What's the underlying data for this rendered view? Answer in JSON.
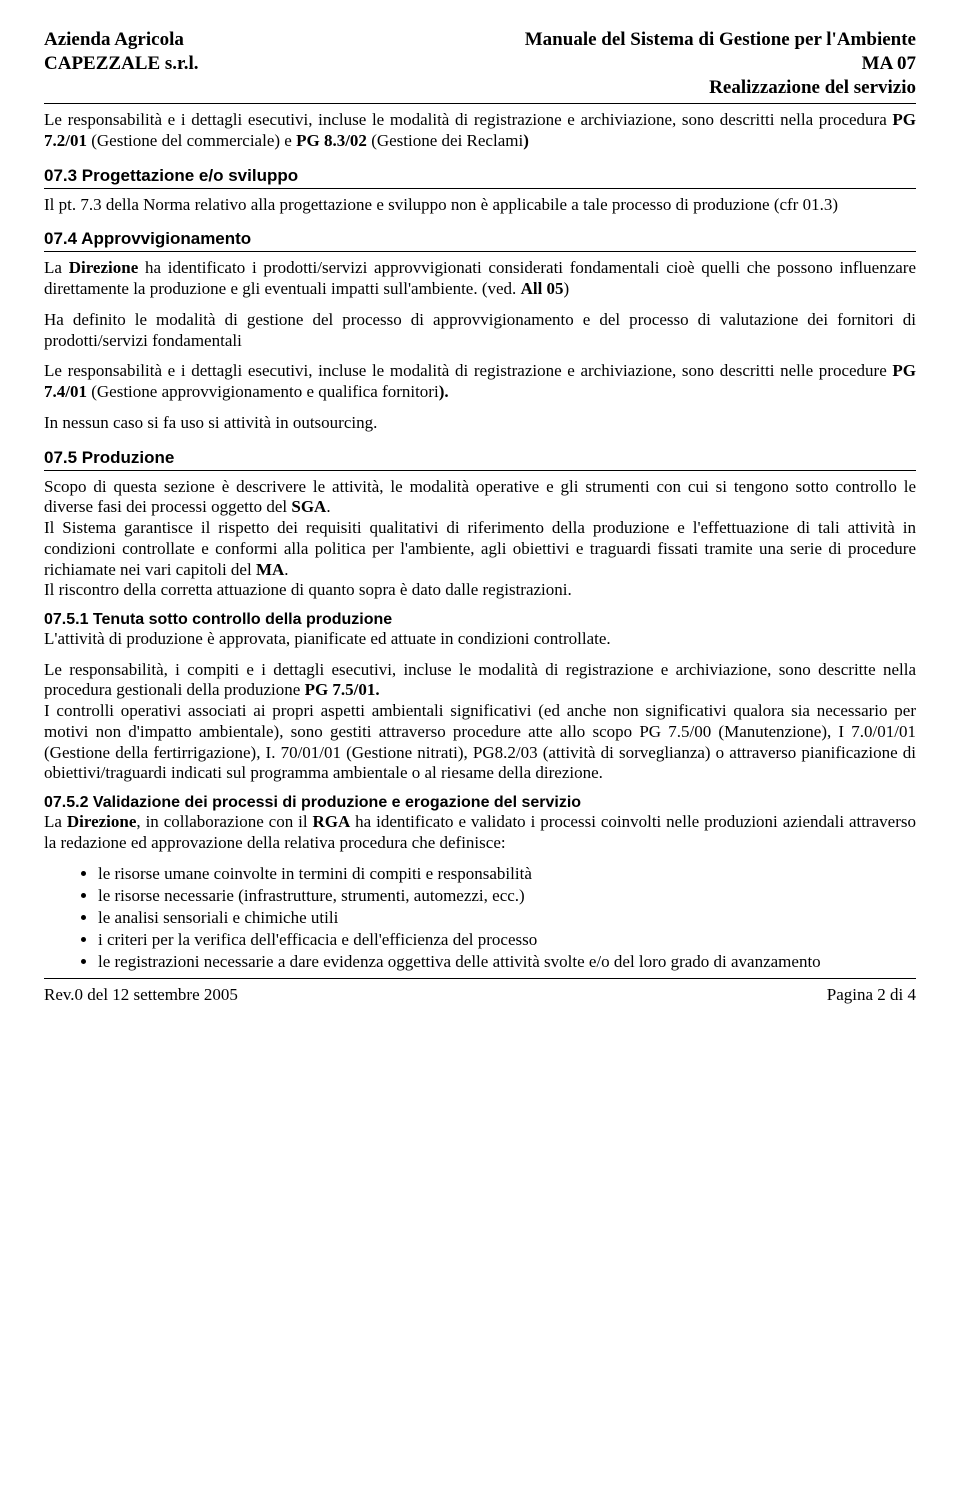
{
  "header": {
    "left_line1": "Azienda Agricola",
    "left_line2": "CAPEZZALE s.r.l.",
    "right_line1": "Manuale del Sistema di Gestione per l'Ambiente",
    "right_line2": "MA 07",
    "right_line3": "Realizzazione del servizio"
  },
  "intro_para1a": "Le responsabilità e i dettagli esecutivi, incluse le modalità di registrazione e archiviazione, sono descritti nella procedura ",
  "intro_para1_bold": "PG 7.2/01",
  "intro_para1b": " (Gestione del commerciale) e ",
  "intro_para1_bold2": "PG 8.3/02",
  "intro_para1c": " (Gestione dei Reclami",
  "intro_para1_bold3": ")",
  "sec073_title": "07.3 Progettazione e/o sviluppo",
  "sec073_para": "Il pt. 7.3 della Norma relativo alla progettazione e sviluppo non è applicabile a tale processo di produzione (cfr 01.3)",
  "sec074_title": "07.4 Approvvigionamento",
  "sec074_p1a": "La ",
  "sec074_p1_bold": "Direzione",
  "sec074_p1b": " ha identificato i prodotti/servizi approvvigionati considerati fondamentali cioè quelli che possono influenzare direttamente la produzione e gli eventuali impatti sull'ambiente. (ved. ",
  "sec074_p1_bold2": "All 05",
  "sec074_p1c": ")",
  "sec074_p2": "Ha definito le modalità di gestione del processo di approvvigionamento e del processo di valutazione dei fornitori di prodotti/servizi fondamentali",
  "sec074_p3a": "Le responsabilità e i dettagli esecutivi, incluse le modalità di registrazione e archiviazione, sono descritti nelle procedure ",
  "sec074_p3_bold": "PG 7.4/01",
  "sec074_p3b": " (Gestione approvvigionamento e qualifica fornitori",
  "sec074_p3_bold2": ").",
  "sec074_p4": "In nessun caso si fa uso si attività in outsourcing.",
  "sec075_title": "07.5 Produzione",
  "sec075_p1a": "Scopo di questa sezione è descrivere le attività, le modalità operative e gli strumenti con cui si tengono sotto controllo le diverse fasi dei processi oggetto del ",
  "sec075_p1_bold": "SGA",
  "sec075_p1b": ".",
  "sec075_p2a": "Il Sistema garantisce il rispetto dei requisiti qualitativi di riferimento della produzione e l'effettuazione di tali attività in condizioni controllate e conformi alla politica per l'ambiente, agli obiettivi e traguardi fissati tramite una serie di procedure richiamate nei vari capitoli del ",
  "sec075_p2_bold": "MA",
  "sec075_p2b": ".",
  "sec075_p3": "Il riscontro della corretta attuazione di quanto sopra è dato dalle registrazioni.",
  "sec0751_title": "07.5.1 Tenuta sotto controllo della produzione",
  "sec0751_p1": "L'attività di produzione è approvata, pianificate ed attuate in condizioni controllate.",
  "sec0751_p2a": "Le responsabilità, i compiti e i dettagli esecutivi, incluse le modalità di registrazione e archiviazione, sono descritte nella procedura gestionali della produzione ",
  "sec0751_p2_bold": "PG 7.5/01.",
  "sec0751_p3": "I controlli operativi associati ai propri aspetti ambientali significativi (ed anche non significativi qualora sia necessario per motivi non d'impatto ambientale), sono gestiti attraverso procedure atte allo scopo PG 7.5/00 (Manutenzione), I 7.0/01/01 (Gestione della fertirrigazione), I. 70/01/01 (Gestione nitrati), PG8.2/03 (attività di sorveglianza) o attraverso pianificazione di obiettivi/traguardi indicati sul programma ambientale o al riesame della direzione.",
  "sec0752_title": "07.5.2 Validazione dei processi di produzione e erogazione del servizio",
  "sec0752_p1a": "La ",
  "sec0752_p1_bold1": "Direzione",
  "sec0752_p1b": ", in collaborazione con il ",
  "sec0752_p1_bold2": "RGA",
  "sec0752_p1c": " ha identificato e validato i processi coinvolti nelle produzioni aziendali attraverso la redazione ed approvazione della relativa procedura che definisce:",
  "bullets": [
    "le risorse umane coinvolte in termini di compiti e responsabilità",
    "le risorse necessarie (infrastrutture, strumenti, automezzi, ecc.)",
    "le analisi sensoriali e chimiche utili",
    "i criteri per la verifica dell'efficacia e dell'efficienza del processo",
    "le registrazioni necessarie a dare evidenza oggettiva delle attività svolte e/o del loro grado di avanzamento"
  ],
  "footer": {
    "left": "Rev.0 del 12 settembre 2005",
    "right": "Pagina 2 di 4"
  }
}
